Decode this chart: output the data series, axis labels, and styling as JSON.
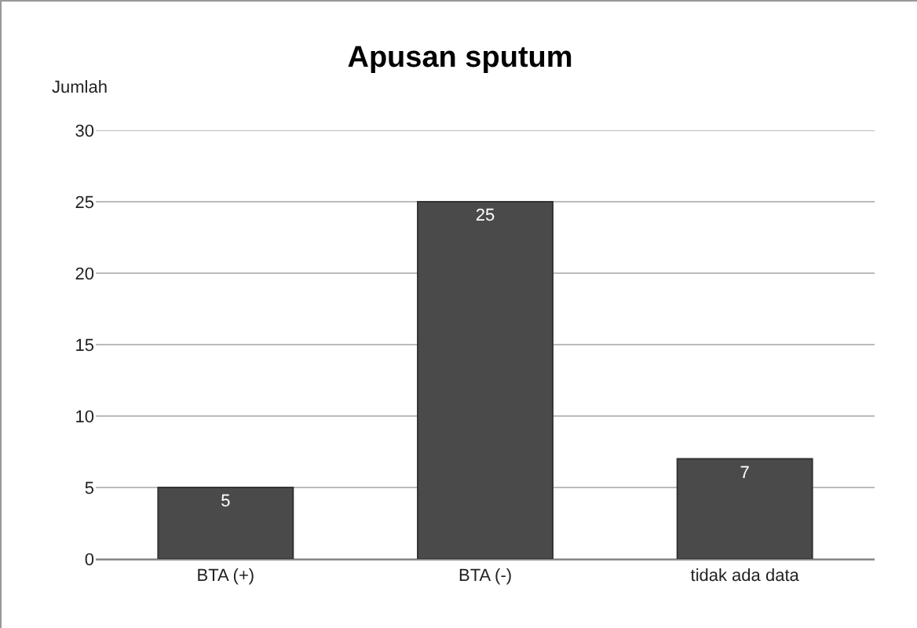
{
  "chart_data": {
    "type": "bar",
    "title": "Apusan sputum",
    "ylabel": "Jumlah",
    "categories": [
      "BTA (+)",
      "BTA (-)",
      "tidak ada data"
    ],
    "values": [
      5,
      25,
      7
    ],
    "color": "#4a4a4a",
    "ylim": [
      0,
      30
    ],
    "yticks": [
      0,
      5,
      10,
      15,
      20,
      25,
      30
    ],
    "grid": "y",
    "data_labels": true
  }
}
